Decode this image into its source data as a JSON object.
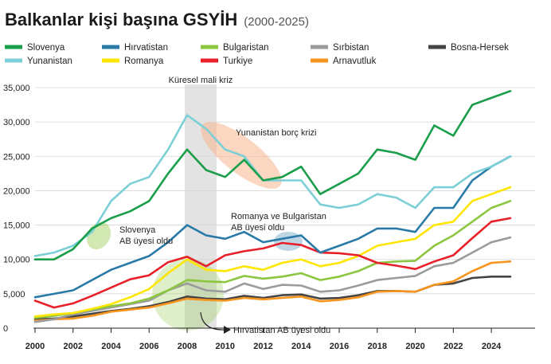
{
  "chart_data": {
    "type": "line",
    "title": "Balkanlar kişi başına GSYİH",
    "subtitle": "(2000-2025)",
    "xlabel": "",
    "ylabel": "",
    "ylim": [
      0,
      35000
    ],
    "xlim": [
      2000,
      2026
    ],
    "yticks": [
      0,
      5000,
      10000,
      15000,
      20000,
      25000,
      30000,
      35000
    ],
    "ytick_labels": [
      "0",
      "5,000",
      "10,000",
      "15,000",
      "20,000",
      "25,000",
      "30,000",
      "35,000"
    ],
    "xticks": [
      2000,
      2002,
      2004,
      2006,
      2008,
      2010,
      2012,
      2014,
      2016,
      2018,
      2020,
      2022,
      2024
    ],
    "grid": "horizontal",
    "legend_position": "top",
    "x": [
      2000,
      2001,
      2002,
      2003,
      2004,
      2005,
      2006,
      2007,
      2008,
      2009,
      2010,
      2011,
      2012,
      2013,
      2014,
      2015,
      2016,
      2017,
      2018,
      2019,
      2020,
      2021,
      2022,
      2023,
      2024,
      2025
    ],
    "series": [
      {
        "name": "Slovenya",
        "color": "#1a9e4a",
        "values": [
          10000,
          10000,
          11500,
          14500,
          16000,
          17000,
          18500,
          22500,
          26000,
          23000,
          22000,
          24500,
          21500,
          22000,
          23500,
          19500,
          21000,
          22500,
          26000,
          25500,
          24500,
          29500,
          28000,
          32500,
          33500,
          34500
        ]
      },
      {
        "name": "Hırvatistan",
        "color": "#2a7aa8",
        "values": [
          4500,
          5000,
          5500,
          7000,
          8500,
          9500,
          10500,
          12500,
          15000,
          13500,
          13000,
          14000,
          12500,
          13000,
          13500,
          11000,
          12000,
          13000,
          14500,
          14500,
          14000,
          17500,
          17500,
          21500,
          23500,
          25000
        ]
      },
      {
        "name": "Bulgaristan",
        "color": "#8cc63f",
        "values": [
          1500,
          1800,
          2200,
          2700,
          3200,
          3600,
          4300,
          5500,
          7000,
          6800,
          6700,
          7600,
          7200,
          7500,
          8000,
          7000,
          7500,
          8300,
          9500,
          9700,
          9800,
          12000,
          13500,
          15500,
          17500,
          18500
        ]
      },
      {
        "name": "Sırbistan",
        "color": "#9b9b9b",
        "values": [
          900,
          1300,
          2000,
          2500,
          3000,
          3500,
          4000,
          5500,
          6500,
          5500,
          5300,
          6500,
          5700,
          6300,
          6200,
          5300,
          5500,
          6200,
          7000,
          7300,
          7600,
          9000,
          9500,
          11000,
          12500,
          13200
        ]
      },
      {
        "name": "Bosna-Hersek",
        "color": "#444444",
        "values": [
          1300,
          1400,
          1700,
          2100,
          2500,
          2800,
          3200,
          3800,
          4600,
          4300,
          4200,
          4700,
          4400,
          4800,
          4900,
          4300,
          4400,
          4800,
          5400,
          5400,
          5300,
          6300,
          6500,
          7300,
          7500,
          7500
        ]
      },
      {
        "name": "Yunanistan",
        "color": "#7ccfd6",
        "values": [
          10500,
          11000,
          12000,
          14000,
          18500,
          21000,
          22000,
          26000,
          31000,
          29000,
          26000,
          25000,
          21500,
          21500,
          21500,
          18000,
          17500,
          18000,
          19500,
          19000,
          17500,
          20500,
          20500,
          22500,
          23500,
          25000
        ]
      },
      {
        "name": "Romanya",
        "color": "#ffe600",
        "values": [
          1700,
          2000,
          2200,
          2800,
          3500,
          4500,
          5700,
          8000,
          10000,
          8500,
          8300,
          9000,
          8500,
          9500,
          10000,
          9000,
          9500,
          10500,
          12000,
          12500,
          13000,
          15000,
          15500,
          18500,
          19500,
          20500
        ]
      },
      {
        "name": "Turkiye",
        "color": "#e8202a",
        "values": [
          4000,
          3000,
          3600,
          4700,
          5900,
          7100,
          7700,
          9600,
          10400,
          9000,
          10600,
          11200,
          11600,
          12400,
          12100,
          11000,
          10900,
          10600,
          9500,
          9100,
          8600,
          9700,
          10600,
          13100,
          15500,
          16000
        ]
      },
      {
        "name": "Arnavutluk",
        "color": "#f7941d",
        "values": [
          1100,
          1300,
          1400,
          1800,
          2400,
          2700,
          3000,
          3600,
          4300,
          4100,
          4000,
          4400,
          4200,
          4400,
          4600,
          3900,
          4100,
          4500,
          5300,
          5400,
          5300,
          6300,
          6800,
          8300,
          9500,
          9700
        ]
      }
    ],
    "annotations": [
      {
        "text": "Küresel mali kriz",
        "x_range": [
          2008,
          2009
        ]
      },
      {
        "text": "Yunanistan borç krizi"
      },
      {
        "text": "Slovenya AB üyesi oldu"
      },
      {
        "text": "Romanya ve Bulgaristan AB üyesi oldu"
      },
      {
        "text": "Hırvatistan AB üyesi oldu"
      }
    ]
  }
}
